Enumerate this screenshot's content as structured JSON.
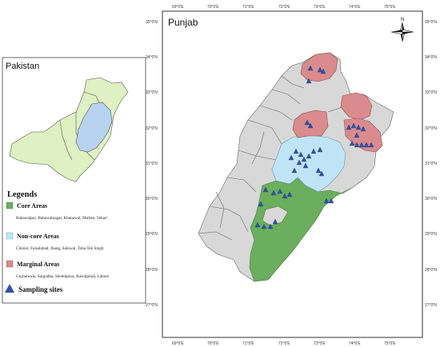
{
  "map": {
    "title": "Punjab",
    "lat_labels": [
      "35°0'N",
      "34°0'N",
      "33°0'N",
      "32°0'N",
      "31°0'N",
      "30°0'N",
      "29°0'N",
      "28°0'N",
      "27°0'N"
    ],
    "lon_labels": [
      "69°0'E",
      "70°0'E",
      "71°0'E",
      "72°0'E",
      "73°0'E",
      "74°0'E",
      "75°0'E"
    ],
    "north_label": "N",
    "colors": {
      "core": "#6aae5e",
      "non_core": "#bfe4f6",
      "marginal": "#d98b8d",
      "other": "#d8d8d8",
      "site": "#2f52a6"
    }
  },
  "inset": {
    "title": "Pakistan",
    "colors": {
      "country": "#dff0c2",
      "punjab": "#b7d3f0"
    }
  },
  "legend": {
    "title": "Legends",
    "core_label": "Core Areas",
    "core_districts": "Bahawalpur, Bahawalnagar, Khanewal, Multan, Vehari",
    "noncore_label": "Non-core Areas",
    "noncore_districts": "Chiniot, Faisalabad, Jhang, Sahiwal, Toba Tek Singh",
    "marginal_label": "Marginal Areas",
    "marginal_districts": "Gujranwala, Sargodha, Sheikhpura, Rawalpindi, Lahore",
    "sites_label": "Sampling sites"
  }
}
